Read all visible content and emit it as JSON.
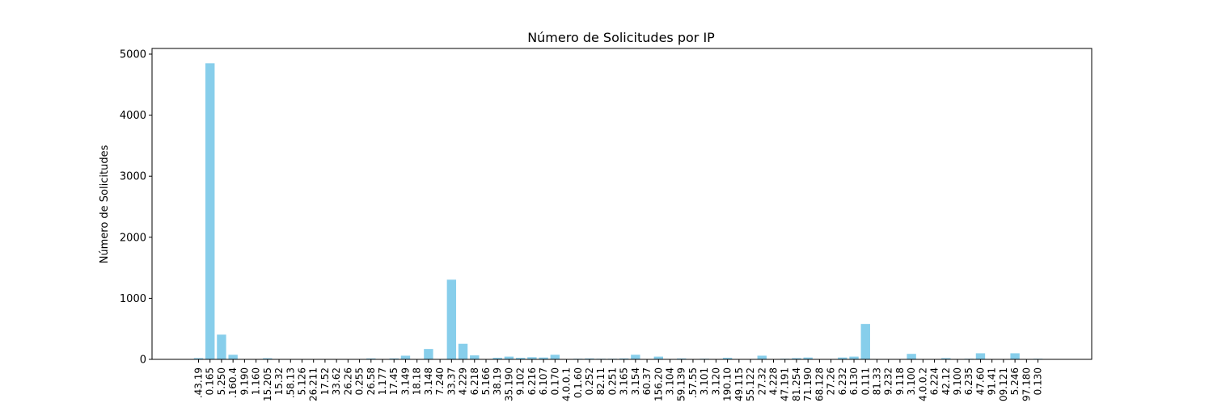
{
  "chart_data": {
    "type": "bar",
    "title": "Número de Solicitudes por IP",
    "xlabel": "",
    "ylabel": "Número de Solicitudes",
    "ylim": [
      0,
      5000
    ],
    "yticks": [
      0,
      1000,
      2000,
      3000,
      4000,
      5000
    ],
    "grid": false,
    "bar_color": "#87CEEB",
    "categories": [
      ".43.19",
      "0.165",
      "5.250",
      ".160.4",
      "9.190",
      "1.160",
      "15.205",
      "15.32",
      ".58.13",
      "5.126",
      "26.211",
      "17.52",
      "33.62",
      "26.26",
      "0.255",
      "26.58",
      "1.177",
      "17.45",
      "3.149",
      "18.18",
      "3.148",
      "7.240",
      "33.37",
      "4.229",
      "6.218",
      "5.166",
      "38.19",
      "35.190",
      "9.102",
      "6.216",
      "6.107",
      "0.170",
      "4.0.0.1",
      "0.1.60",
      "0.252",
      "82.11",
      "0.251",
      "3.165",
      "3.154",
      "60.37",
      "156.20",
      "3.104",
      "59.139",
      ".57.55",
      "3.101",
      "3.120",
      "190.10",
      "49.115",
      "55.122",
      "27.32",
      "4.228",
      "47.191",
      "81.254",
      "71.190",
      "68.128",
      "27.26",
      "6.232",
      "6.130",
      "0.111",
      "81.33",
      "9.232",
      "9.118",
      "3.100",
      "4.0.0.2",
      "6.224",
      "42.12",
      "9.100",
      "6.235",
      "47.60",
      "91.41",
      "09.121",
      "5.246",
      "97.180",
      "0.130"
    ],
    "values": [
      20,
      4850,
      405,
      75,
      5,
      5,
      18,
      5,
      5,
      5,
      5,
      5,
      5,
      5,
      5,
      15,
      5,
      15,
      60,
      5,
      170,
      5,
      1305,
      255,
      65,
      5,
      25,
      45,
      25,
      35,
      30,
      75,
      5,
      10,
      15,
      10,
      10,
      15,
      75,
      5,
      45,
      5,
      15,
      5,
      10,
      5,
      25,
      5,
      5,
      60,
      5,
      10,
      20,
      30,
      5,
      5,
      30,
      45,
      580,
      5,
      5,
      5,
      90,
      5,
      5,
      20,
      5,
      10,
      100,
      5,
      5,
      100,
      5,
      10
    ]
  }
}
